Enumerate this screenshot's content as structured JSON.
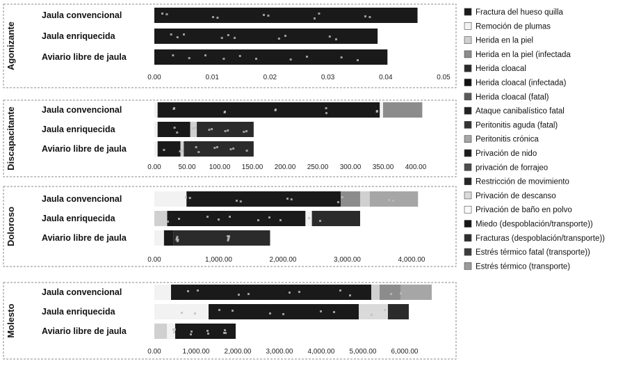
{
  "chart_data": {
    "type": "bar",
    "orientation": "horizontal",
    "stacked": true,
    "legend_position": "right",
    "grid": false,
    "categories": [
      "Jaula convencional",
      "Jaula enriquecida",
      "Aviario libre de jaula"
    ],
    "legend": [
      {
        "name": "Fractura del hueso quilla",
        "color": "#1a1a1a"
      },
      {
        "name": "Remoción de plumas",
        "color": "#f2f2f2"
      },
      {
        "name": "Herida en la piel",
        "color": "#d0d0d0"
      },
      {
        "name": "Herida en la piel (infectada",
        "color": "#8c8c8c"
      },
      {
        "name": "Herida cloacal",
        "color": "#2b2b2b"
      },
      {
        "name": "Herida cloacal (infectada)",
        "color": "#111111"
      },
      {
        "name": "Herida cloacal (fatal)",
        "color": "#5a5a5a"
      },
      {
        "name": "Ataque canibalístico fatal",
        "color": "#222222"
      },
      {
        "name": "Peritonitis aguda (fatal)",
        "color": "#333333"
      },
      {
        "name": "Peritonitis crónica",
        "color": "#a6a6a6"
      },
      {
        "name": "Privación de nido",
        "color": "#1c1c1c"
      },
      {
        "name": "privación de forrajeo",
        "color": "#4d4d4d"
      },
      {
        "name": "Restricción de movimiento",
        "color": "#262626"
      },
      {
        "name": "Privación de descanso",
        "color": "#dadada"
      },
      {
        "name": "Privación de baño en polvo",
        "color": "#fafafa"
      },
      {
        "name": "Miedo (despoblación/transporte))",
        "color": "#161616"
      },
      {
        "name": "Fracturas (despoblación/transporte))",
        "color": "#2e2e2e"
      },
      {
        "name": "Estrés térmico fatal (transporte))",
        "color": "#3c3c3c"
      },
      {
        "name": "Estrés térmico (transporte)",
        "color": "#9a9a9a"
      }
    ],
    "panels": [
      {
        "group": "Agonizante",
        "xlim": [
          0,
          0.05
        ],
        "ticks": [
          0,
          0.01,
          0.02,
          0.03,
          0.04,
          0.05
        ],
        "tick_labels": [
          "0.00",
          "0.01",
          "0.02",
          "0.03",
          "0.04",
          "0.05"
        ],
        "totals": [
          0.0455,
          0.0386,
          0.0403
        ],
        "segments": [
          [
            [
              0,
              0.0455,
              "#1a1a1a"
            ]
          ],
          [
            [
              0,
              0.0386,
              "#1a1a1a"
            ]
          ],
          [
            [
              0,
              0.0403,
              "#1a1a1a"
            ]
          ]
        ]
      },
      {
        "group": "Discapacitante",
        "xlim": [
          0,
          400
        ],
        "ticks": [
          0,
          50,
          100,
          150,
          200,
          250,
          300,
          350,
          400
        ],
        "tick_labels": [
          "0.00",
          "50.00",
          "100.00",
          "150.00",
          "200.00",
          "250.00",
          "300.00",
          "350.00",
          "400.00"
        ],
        "totals": [
          410,
          152,
          152
        ],
        "segments": [
          [
            [
              0,
              5,
              "#f2f2f2"
            ],
            [
              5,
              345,
              "#1a1a1a"
            ],
            [
              345,
              350,
              "#f2f2f2"
            ],
            [
              350,
              410,
              "#8c8c8c"
            ]
          ],
          [
            [
              0,
              5,
              "#f2f2f2"
            ],
            [
              5,
              55,
              "#1a1a1a"
            ],
            [
              55,
              65,
              "#d0d0d0"
            ],
            [
              65,
              152,
              "#2b2b2b"
            ]
          ],
          [
            [
              0,
              5,
              "#f2f2f2"
            ],
            [
              5,
              40,
              "#1a1a1a"
            ],
            [
              40,
              45,
              "#d0d0d0"
            ],
            [
              45,
              152,
              "#2b2b2b"
            ]
          ]
        ]
      },
      {
        "group": "Doloroso",
        "xlim": [
          0,
          4000
        ],
        "ticks": [
          0,
          1000,
          2000,
          3000,
          4000
        ],
        "tick_labels": [
          "0.00",
          "1,000.00",
          "2,000.00",
          "3,000.00",
          "4,000.00"
        ],
        "totals": [
          4100,
          3200,
          1800
        ],
        "segments": [
          [
            [
              0,
              500,
              "#f2f2f2"
            ],
            [
              500,
              2900,
              "#1a1a1a"
            ],
            [
              2900,
              3200,
              "#8c8c8c"
            ],
            [
              3200,
              3350,
              "#d0d0d0"
            ],
            [
              3350,
              4100,
              "#a6a6a6"
            ]
          ],
          [
            [
              0,
              200,
              "#d0d0d0"
            ],
            [
              200,
              2350,
              "#1a1a1a"
            ],
            [
              2350,
              2450,
              "#f2f2f2"
            ],
            [
              2450,
              3200,
              "#2b2b2b"
            ]
          ],
          [
            [
              0,
              150,
              "#f2f2f2"
            ],
            [
              150,
              300,
              "#1a1a1a"
            ],
            [
              300,
              1800,
              "#2b2b2b"
            ]
          ]
        ]
      },
      {
        "group": "Molesto",
        "xlim": [
          0,
          6000
        ],
        "ticks": [
          0,
          1000,
          2000,
          3000,
          4000,
          5000,
          6000
        ],
        "tick_labels": [
          "0.00",
          "1,000.00",
          "2,000.00",
          "3,000.00",
          "4,000.00",
          "5,000.00",
          "6,000.00"
        ],
        "totals": [
          6650,
          6100,
          1950
        ],
        "segments": [
          [
            [
              0,
              400,
              "#f2f2f2"
            ],
            [
              400,
              5200,
              "#1a1a1a"
            ],
            [
              5200,
              5400,
              "#d0d0d0"
            ],
            [
              5400,
              5900,
              "#8c8c8c"
            ],
            [
              5900,
              6650,
              "#a6a6a6"
            ]
          ],
          [
            [
              0,
              1300,
              "#f2f2f2"
            ],
            [
              1300,
              4900,
              "#1a1a1a"
            ],
            [
              4900,
              5600,
              "#dadada"
            ],
            [
              5600,
              6100,
              "#2b2b2b"
            ]
          ],
          [
            [
              0,
              300,
              "#d0d0d0"
            ],
            [
              300,
              500,
              "#f2f2f2"
            ],
            [
              500,
              1950,
              "#1a1a1a"
            ]
          ]
        ]
      }
    ]
  }
}
